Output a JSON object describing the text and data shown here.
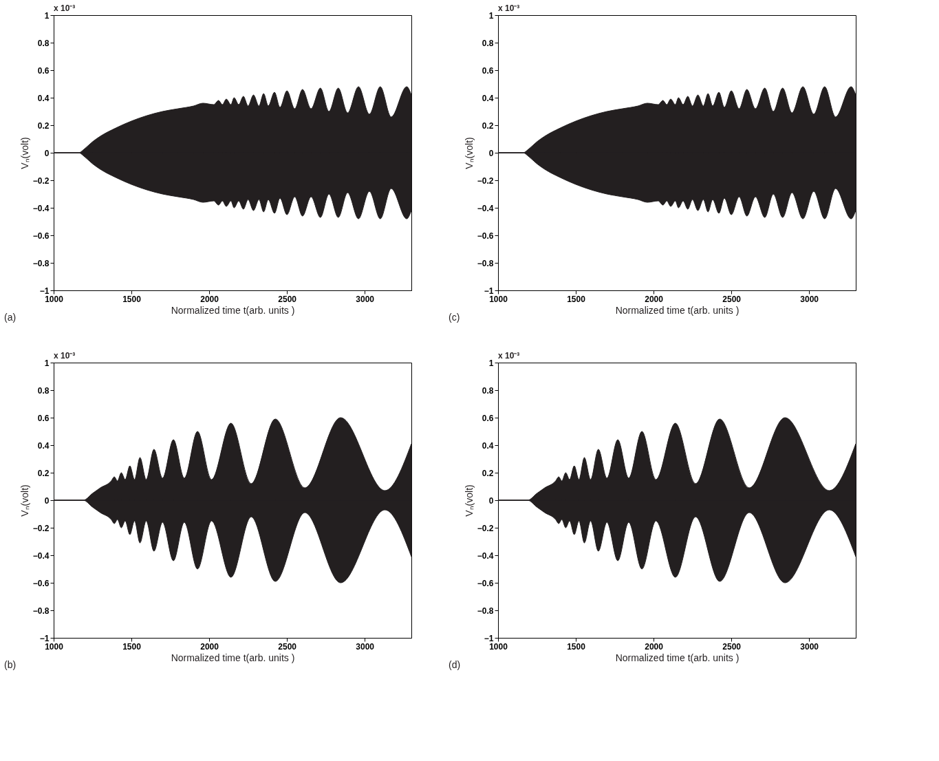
{
  "chart_data": [
    {
      "type": "area",
      "xlabel": "Normalized time t(arb. units )",
      "ylabel": "Vₙ(volt)",
      "annotations": [
        "x 10⁻³",
        "(a)"
      ],
      "xlim": [
        1000,
        3300
      ],
      "ylim": [
        -1,
        1
      ],
      "xticks": [
        1000,
        1500,
        2000,
        2500,
        3000
      ],
      "yticks": [
        -1,
        -0.8,
        -0.6,
        -0.4,
        -0.2,
        0,
        0.2,
        0.4,
        0.6,
        0.8,
        1
      ],
      "x": [
        1000,
        1160,
        1200,
        1250,
        1300,
        1400,
        1500,
        1600,
        1700,
        1800,
        1900,
        1960,
        2030,
        2060,
        2085,
        2110,
        2140,
        2160,
        2190,
        2220,
        2250,
        2285,
        2320,
        2350,
        2380,
        2420,
        2455,
        2500,
        2550,
        2600,
        2655,
        2715,
        2770,
        2830,
        2890,
        2960,
        3030,
        3100,
        3170,
        3270,
        3300
      ],
      "series": [
        {
          "color": "#231f20",
          "values": [
            0,
            0,
            0.03,
            0.08,
            0.12,
            0.18,
            0.23,
            0.27,
            0.3,
            0.32,
            0.34,
            0.36,
            0.35,
            0.38,
            0.35,
            0.39,
            0.35,
            0.4,
            0.35,
            0.41,
            0.34,
            0.42,
            0.34,
            0.43,
            0.34,
            0.44,
            0.33,
            0.45,
            0.32,
            0.46,
            0.32,
            0.47,
            0.3,
            0.47,
            0.29,
            0.48,
            0.28,
            0.48,
            0.26,
            0.48,
            0.42
          ]
        },
        {
          "color": "#231f20",
          "values": [
            0,
            0,
            -0.03,
            -0.08,
            -0.12,
            -0.18,
            -0.23,
            -0.27,
            -0.3,
            -0.32,
            -0.34,
            -0.36,
            -0.35,
            -0.38,
            -0.35,
            -0.39,
            -0.35,
            -0.4,
            -0.35,
            -0.41,
            -0.34,
            -0.42,
            -0.34,
            -0.43,
            -0.34,
            -0.44,
            -0.33,
            -0.45,
            -0.32,
            -0.46,
            -0.32,
            -0.47,
            -0.3,
            -0.47,
            -0.29,
            -0.48,
            -0.28,
            -0.48,
            -0.26,
            -0.48,
            -0.42
          ]
        }
      ]
    },
    {
      "type": "area",
      "xlabel": "Normalized time t(arb. units )",
      "ylabel": "Vₙ(volt)",
      "annotations": [
        "x 10⁻³",
        "(c)"
      ],
      "xlim": [
        1000,
        3300
      ],
      "ylim": [
        -1,
        1
      ],
      "xticks": [
        1000,
        1500,
        2000,
        2500,
        3000
      ],
      "yticks": [
        -1,
        -0.8,
        -0.6,
        -0.4,
        -0.2,
        0,
        0.2,
        0.4,
        0.6,
        0.8,
        1
      ],
      "x": [
        1000,
        1160,
        1200,
        1250,
        1300,
        1400,
        1500,
        1600,
        1700,
        1800,
        1900,
        1960,
        2030,
        2060,
        2085,
        2110,
        2140,
        2160,
        2190,
        2220,
        2250,
        2285,
        2320,
        2350,
        2380,
        2420,
        2455,
        2500,
        2550,
        2600,
        2655,
        2715,
        2770,
        2830,
        2890,
        2960,
        3030,
        3100,
        3170,
        3270,
        3300
      ],
      "series": [
        {
          "color": "#231f20",
          "values": [
            0,
            0,
            0.03,
            0.08,
            0.12,
            0.18,
            0.23,
            0.27,
            0.3,
            0.32,
            0.34,
            0.36,
            0.35,
            0.38,
            0.35,
            0.39,
            0.35,
            0.4,
            0.35,
            0.41,
            0.34,
            0.42,
            0.34,
            0.43,
            0.34,
            0.44,
            0.33,
            0.45,
            0.32,
            0.46,
            0.32,
            0.47,
            0.3,
            0.47,
            0.29,
            0.48,
            0.28,
            0.48,
            0.26,
            0.48,
            0.42
          ]
        },
        {
          "color": "#231f20",
          "values": [
            0,
            0,
            -0.03,
            -0.08,
            -0.12,
            -0.18,
            -0.23,
            -0.27,
            -0.3,
            -0.32,
            -0.34,
            -0.36,
            -0.35,
            -0.38,
            -0.35,
            -0.39,
            -0.35,
            -0.4,
            -0.35,
            -0.41,
            -0.34,
            -0.42,
            -0.34,
            -0.43,
            -0.34,
            -0.44,
            -0.33,
            -0.45,
            -0.32,
            -0.46,
            -0.32,
            -0.47,
            -0.3,
            -0.47,
            -0.29,
            -0.48,
            -0.28,
            -0.48,
            -0.26,
            -0.48,
            -0.42
          ]
        }
      ]
    },
    {
      "type": "area",
      "xlabel": "Normalized time t(arb. units )",
      "ylabel": "Vₙ(volt)",
      "annotations": [
        "x 10⁻³",
        "(b)"
      ],
      "xlim": [
        1000,
        3300
      ],
      "ylim": [
        -1,
        1
      ],
      "xticks": [
        1000,
        1500,
        2000,
        2500,
        3000
      ],
      "yticks": [
        -1,
        -0.8,
        -0.6,
        -0.4,
        -0.2,
        0,
        0.2,
        0.4,
        0.6,
        0.8,
        1
      ],
      "x": [
        1000,
        1190,
        1250,
        1300,
        1370,
        1390,
        1410,
        1435,
        1460,
        1490,
        1520,
        1555,
        1595,
        1645,
        1700,
        1770,
        1840,
        1925,
        2015,
        2140,
        2270,
        2425,
        2615,
        2845,
        3130,
        3300
      ],
      "series": [
        {
          "color": "#231f20",
          "values": [
            0,
            0,
            0.05,
            0.09,
            0.14,
            0.17,
            0.14,
            0.2,
            0.15,
            0.25,
            0.15,
            0.31,
            0.15,
            0.37,
            0.16,
            0.44,
            0.16,
            0.5,
            0.15,
            0.56,
            0.12,
            0.59,
            0.09,
            0.6,
            0.07,
            0.41
          ]
        },
        {
          "color": "#231f20",
          "values": [
            0,
            0,
            -0.05,
            -0.09,
            -0.14,
            -0.17,
            -0.14,
            -0.2,
            -0.15,
            -0.25,
            -0.15,
            -0.31,
            -0.15,
            -0.37,
            -0.16,
            -0.44,
            -0.16,
            -0.5,
            -0.15,
            -0.56,
            -0.12,
            -0.59,
            -0.09,
            -0.6,
            -0.07,
            -0.41
          ]
        }
      ]
    },
    {
      "type": "area",
      "xlabel": "Normalized time t(arb. units )",
      "ylabel": "Vₙ(volt)",
      "annotations": [
        "x 10⁻³",
        "(d)"
      ],
      "xlim": [
        1000,
        3300
      ],
      "ylim": [
        -1,
        1
      ],
      "xticks": [
        1000,
        1500,
        2000,
        2500,
        3000
      ],
      "yticks": [
        -1,
        -0.8,
        -0.6,
        -0.4,
        -0.2,
        0,
        0.2,
        0.4,
        0.6,
        0.8,
        1
      ],
      "x": [
        1000,
        1190,
        1250,
        1300,
        1370,
        1390,
        1410,
        1435,
        1460,
        1490,
        1520,
        1555,
        1595,
        1645,
        1700,
        1770,
        1840,
        1925,
        2015,
        2140,
        2270,
        2425,
        2615,
        2845,
        3130,
        3300
      ],
      "series": [
        {
          "color": "#231f20",
          "values": [
            0,
            0,
            0.05,
            0.09,
            0.14,
            0.17,
            0.14,
            0.2,
            0.15,
            0.25,
            0.15,
            0.31,
            0.15,
            0.37,
            0.16,
            0.44,
            0.16,
            0.5,
            0.15,
            0.56,
            0.12,
            0.59,
            0.09,
            0.6,
            0.07,
            0.41
          ]
        },
        {
          "color": "#231f20",
          "values": [
            0,
            0,
            -0.05,
            -0.09,
            -0.14,
            -0.17,
            -0.14,
            -0.2,
            -0.15,
            -0.25,
            -0.15,
            -0.31,
            -0.15,
            -0.37,
            -0.16,
            -0.44,
            -0.16,
            -0.5,
            -0.15,
            -0.56,
            -0.12,
            -0.59,
            -0.09,
            -0.6,
            -0.07,
            -0.41
          ]
        }
      ]
    }
  ]
}
